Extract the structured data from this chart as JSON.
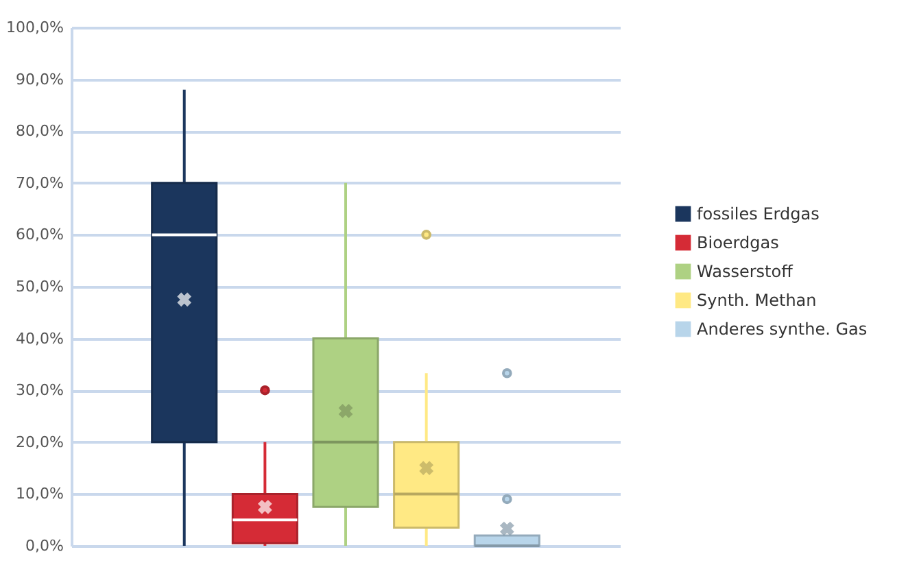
{
  "chart_data": {
    "type": "box",
    "categories": [
      null
    ],
    "ylim": [
      0,
      100
    ],
    "yticks": [
      {
        "value": 0,
        "label": "0,0%"
      },
      {
        "value": 10,
        "label": "10,0%"
      },
      {
        "value": 20,
        "label": "20,0%"
      },
      {
        "value": 30,
        "label": "30,0%"
      },
      {
        "value": 40,
        "label": "40,0%"
      },
      {
        "value": 50,
        "label": "50,0%"
      },
      {
        "value": 60,
        "label": "60,0%"
      },
      {
        "value": 70,
        "label": "70,0%"
      },
      {
        "value": 80,
        "label": "80,0%"
      },
      {
        "value": 90,
        "label": "90,0%"
      },
      {
        "value": 100,
        "label": "100,0%"
      }
    ],
    "grid": "y",
    "legend": "right",
    "series": [
      {
        "name": "fossiles Erdgas",
        "color": "#1b365d",
        "boxes": [
          {
            "low": 0,
            "q1": 20,
            "median": 60,
            "q3": 70,
            "high": 88,
            "mean": 47.5
          }
        ]
      },
      {
        "name": "Bioerdgas",
        "color": "#d52b36",
        "boxes": [
          {
            "low": 0,
            "q1": 0.5,
            "median": 5,
            "q3": 10,
            "high": 20,
            "mean": 7.5,
            "outliers": [
              30
            ]
          }
        ]
      },
      {
        "name": "Wasserstoff",
        "color": "#aed183",
        "boxes": [
          {
            "low": 0,
            "q1": 7.5,
            "median": 20,
            "q3": 40,
            "high": 70,
            "mean": 26
          }
        ]
      },
      {
        "name": "Synth. Methan",
        "color": "#ffe984",
        "boxes": [
          {
            "low": 0,
            "q1": 3.5,
            "median": 10,
            "q3": 20,
            "high": 33.3,
            "mean": 15,
            "outliers": [
              60
            ]
          }
        ]
      },
      {
        "name": "Anderes synthe. Gas",
        "color": "#b8d5ea",
        "boxes": [
          {
            "low": 0,
            "q1": 0,
            "median": 0,
            "q3": 2,
            "high": 2,
            "mean": 3.3,
            "outliers": [
              9,
              33.3
            ]
          }
        ]
      }
    ]
  }
}
